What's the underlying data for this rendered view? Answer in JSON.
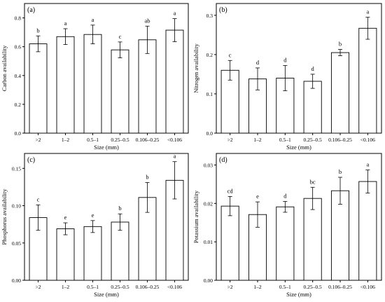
{
  "chart_data": [
    {
      "type": "bar",
      "panel_label": "(a)",
      "categories": [
        ">2",
        "1–2",
        "0.5–1",
        "0.25–0.5",
        "0.106–0.25",
        "<0.106"
      ],
      "values": [
        0.62,
        0.67,
        0.685,
        0.578,
        0.648,
        0.715
      ],
      "errors": [
        0.055,
        0.055,
        0.065,
        0.055,
        0.095,
        0.08
      ],
      "letters": [
        "b",
        "a",
        "a",
        "c",
        "ab",
        "a"
      ],
      "ylim": [
        0,
        0.9
      ],
      "yticks": [
        0.0,
        0.2,
        0.4,
        0.6,
        0.8
      ],
      "ytick_labels": [
        "0.0",
        "0.2",
        "0.4",
        "0.6",
        "0.8"
      ],
      "ylabel": "Carbon availability",
      "xlabel": "Size (mm)"
    },
    {
      "type": "bar",
      "panel_label": "(b)",
      "categories": [
        ">2",
        "1–2",
        "0.5–1",
        "0.25–0.5",
        "0.106–0.25",
        "<0.106"
      ],
      "values": [
        0.16,
        0.138,
        0.14,
        0.132,
        0.205,
        0.267
      ],
      "errors": [
        0.025,
        0.028,
        0.032,
        0.018,
        0.008,
        0.028
      ],
      "letters": [
        "c",
        "d",
        "d",
        "d",
        "b",
        "a"
      ],
      "ylim": [
        0,
        0.33
      ],
      "yticks": [
        0.0,
        0.1,
        0.2,
        0.3
      ],
      "ytick_labels": [
        "0.0",
        "0.1",
        "0.2",
        "0.3"
      ],
      "ylabel": "Nitrogen availability",
      "xlabel": "Size (mm)"
    },
    {
      "type": "bar",
      "panel_label": "(c)",
      "categories": [
        ">2",
        "1–2",
        "0.5–1",
        "0.25–0.5",
        "0.106–0.25",
        "<0.106"
      ],
      "values": [
        0.084,
        0.069,
        0.072,
        0.078,
        0.111,
        0.134
      ],
      "errors": [
        0.017,
        0.008,
        0.008,
        0.011,
        0.02,
        0.025
      ],
      "letters": [
        "c",
        "e",
        "e",
        "b",
        "b",
        "a"
      ],
      "ylim": [
        0,
        0.17
      ],
      "yticks": [
        0.0,
        0.05,
        0.1,
        0.15
      ],
      "ytick_labels": [
        "0.00",
        "0.05",
        "0.10",
        "0.15"
      ],
      "ylabel": "Phosphorus availability",
      "xlabel": "Size (mm)"
    },
    {
      "type": "bar",
      "panel_label": "(d)",
      "categories": [
        ">2",
        "1–2",
        "0.5–1",
        "0.25–0.5",
        "0.106–0.25",
        "<0.106"
      ],
      "values": [
        0.0193,
        0.0171,
        0.0191,
        0.0213,
        0.0233,
        0.0257
      ],
      "errors": [
        0.0025,
        0.0033,
        0.0014,
        0.0029,
        0.0035,
        0.003
      ],
      "letters": [
        "cd",
        "e",
        "d",
        "bc",
        "b",
        "a"
      ],
      "ylim": [
        0,
        0.033
      ],
      "yticks": [
        0.0,
        0.01,
        0.02,
        0.03
      ],
      "ytick_labels": [
        "0.00",
        "0.01",
        "0.02",
        "0.03"
      ],
      "ylabel": "Potassium availability",
      "xlabel": "Size (mm)"
    }
  ]
}
